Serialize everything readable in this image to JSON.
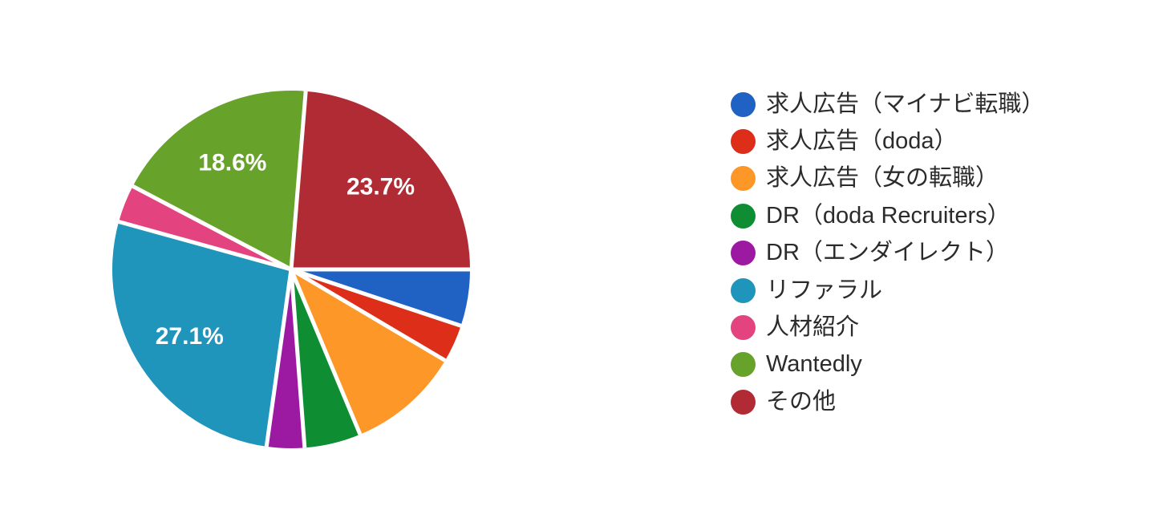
{
  "chart_data": {
    "type": "pie",
    "title": "",
    "legend_position": "right",
    "start_angle_deg": 90,
    "direction": "clockwise",
    "label_threshold_pct": 11,
    "label_radius_fraction": 0.68,
    "separator_color": "#ffffff",
    "slices": [
      {
        "label": "求人広告（マイナビ転職）",
        "pct": 5.1,
        "color": "#2062c4"
      },
      {
        "label": "求人広告（doda）",
        "pct": 3.4,
        "color": "#dd2e1a"
      },
      {
        "label": "求人広告（女の転職）",
        "pct": 10.2,
        "color": "#fd9727"
      },
      {
        "label": "DR（doda Recruiters）",
        "pct": 5.1,
        "color": "#0e8d33"
      },
      {
        "label": "DR（エンダイレクト）",
        "pct": 3.4,
        "color": "#9c1aa1"
      },
      {
        "label": "リファラル",
        "pct": 27.1,
        "color": "#2095bc"
      },
      {
        "label": "人材紹介",
        "pct": 3.4,
        "color": "#e34480"
      },
      {
        "label": "Wantedly",
        "pct": 18.6,
        "color": "#67a22a"
      },
      {
        "label": "その他",
        "pct": 23.7,
        "color": "#b12b35"
      }
    ],
    "visible_slice_labels": [
      "23.7%",
      "27.1%",
      "18.6%"
    ]
  }
}
